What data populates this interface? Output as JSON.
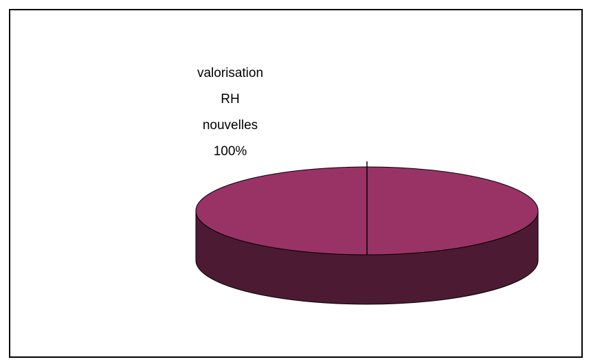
{
  "chart_data": {
    "type": "pie",
    "categories": [
      "valorisation RH nouvelles"
    ],
    "values": [
      100
    ],
    "value_labels": [
      "100%"
    ],
    "colors": [
      "#993366"
    ]
  }
}
